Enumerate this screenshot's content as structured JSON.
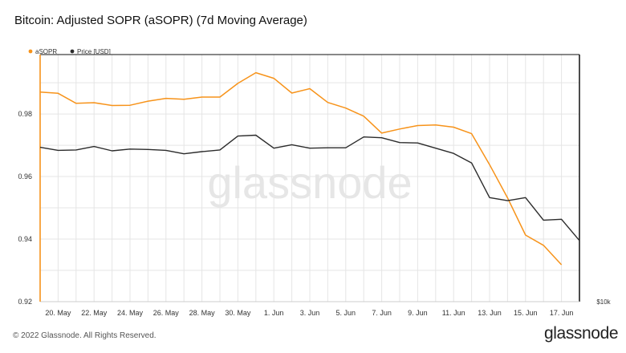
{
  "header": {
    "title": "Bitcoin: Adjusted SOPR (aSOPR) (7d Moving Average)"
  },
  "footer": {
    "copyright": "© 2022 Glassnode. All Rights Reserved.",
    "logo": "glassnode"
  },
  "watermark": "glassnode",
  "colors": {
    "asopr": "#f7931a",
    "price": "#2b2b2b",
    "grid": "#e5e5e5"
  },
  "chart_data": {
    "type": "line",
    "title": "Bitcoin: Adjusted SOPR (aSOPR) (7d Moving Average)",
    "legend": {
      "placement": "top-left",
      "entries": [
        "aSOPR",
        "Price [USD]"
      ]
    },
    "grid": true,
    "x_ticks": [
      "20. May",
      "22. May",
      "24. May",
      "26. May",
      "28. May",
      "30. May",
      "1. Jun",
      "3. Jun",
      "5. Jun",
      "7. Jun",
      "9. Jun",
      "11. Jun",
      "13. Jun",
      "15. Jun",
      "17. Jun"
    ],
    "x_tick_dates": [
      "2022-05-20",
      "2022-05-22",
      "2022-05-24",
      "2022-05-26",
      "2022-05-28",
      "2022-05-30",
      "2022-06-01",
      "2022-06-03",
      "2022-06-05",
      "2022-06-07",
      "2022-06-09",
      "2022-06-11",
      "2022-06-13",
      "2022-06-15",
      "2022-06-17"
    ],
    "x_range": [
      "2022-05-19",
      "2022-06-18"
    ],
    "y_left": {
      "ticks": [
        "0.98",
        "0.96",
        "0.94",
        "0.92"
      ],
      "tick_values": [
        0.98,
        0.96,
        0.94,
        0.92
      ],
      "range": [
        0.92,
        0.999
      ]
    },
    "y_right": {
      "label": "$10k"
    },
    "series": [
      {
        "name": "aSOPR",
        "color": "#f7931a",
        "axis": "left",
        "x": [
          "2022-05-19",
          "2022-05-20",
          "2022-05-21",
          "2022-05-22",
          "2022-05-23",
          "2022-05-24",
          "2022-05-25",
          "2022-05-26",
          "2022-05-27",
          "2022-05-28",
          "2022-05-29",
          "2022-05-30",
          "2022-05-31",
          "2022-06-01",
          "2022-06-02",
          "2022-06-03",
          "2022-06-04",
          "2022-06-05",
          "2022-06-06",
          "2022-06-07",
          "2022-06-08",
          "2022-06-09",
          "2022-06-10",
          "2022-06-11",
          "2022-06-12",
          "2022-06-13",
          "2022-06-14",
          "2022-06-15",
          "2022-06-16",
          "2022-06-17"
        ],
        "values": [
          0.987,
          0.9866,
          0.9834,
          0.9836,
          0.9827,
          0.9828,
          0.9841,
          0.985,
          0.9847,
          0.9854,
          0.9854,
          0.9898,
          0.9932,
          0.9914,
          0.9867,
          0.9881,
          0.9837,
          0.9819,
          0.9793,
          0.9739,
          0.9752,
          0.9763,
          0.9765,
          0.9758,
          0.9737,
          0.9638,
          0.9532,
          0.9413,
          0.938,
          0.9318
        ]
      },
      {
        "name": "Price [USD]",
        "color": "#2b2b2b",
        "axis": "right",
        "x": [
          "2022-05-19",
          "2022-05-20",
          "2022-05-21",
          "2022-05-22",
          "2022-05-23",
          "2022-05-24",
          "2022-05-25",
          "2022-05-26",
          "2022-05-27",
          "2022-05-28",
          "2022-05-29",
          "2022-05-30",
          "2022-05-31",
          "2022-06-01",
          "2022-06-02",
          "2022-06-03",
          "2022-06-04",
          "2022-06-05",
          "2022-06-06",
          "2022-06-07",
          "2022-06-08",
          "2022-06-09",
          "2022-06-10",
          "2022-06-11",
          "2022-06-12",
          "2022-06-13",
          "2022-06-14",
          "2022-06-15",
          "2022-06-16",
          "2022-06-17",
          "2022-06-18"
        ],
        "values": [
          29.8,
          29.45,
          29.5,
          29.9,
          29.4,
          29.6,
          29.55,
          29.45,
          29.05,
          29.3,
          29.5,
          31.1,
          31.2,
          29.7,
          30.1,
          29.7,
          29.75,
          29.75,
          31.0,
          30.9,
          30.35,
          30.3,
          29.7,
          29.1,
          28.0,
          24.0,
          23.65,
          24.0,
          21.4,
          21.5,
          19.05
        ]
      }
    ]
  }
}
